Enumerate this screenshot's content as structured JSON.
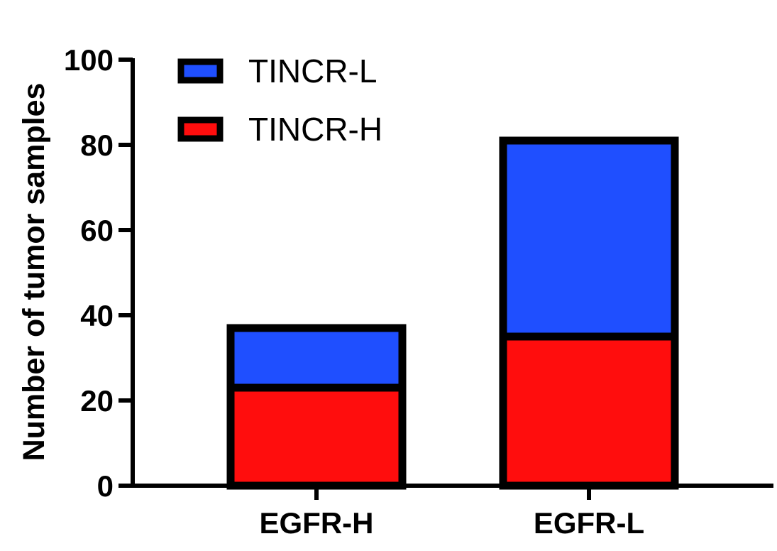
{
  "chart_data": {
    "type": "bar",
    "stacked": true,
    "title": "",
    "xlabel": "",
    "ylabel": "Number of tumor samples",
    "ylim": [
      0,
      100
    ],
    "yticks": [
      0,
      20,
      40,
      60,
      80,
      100
    ],
    "categories": [
      "EGFR-H",
      "EGFR-L"
    ],
    "series": [
      {
        "name": "TINCR-H",
        "color": "#ff0d0d",
        "values": [
          23,
          35
        ]
      },
      {
        "name": "TINCR-L",
        "color": "#1f4fff",
        "values": [
          14,
          46
        ]
      }
    ],
    "legend": {
      "position": "top-left",
      "order": [
        "TINCR-L",
        "TINCR-H"
      ]
    },
    "grid": false
  }
}
